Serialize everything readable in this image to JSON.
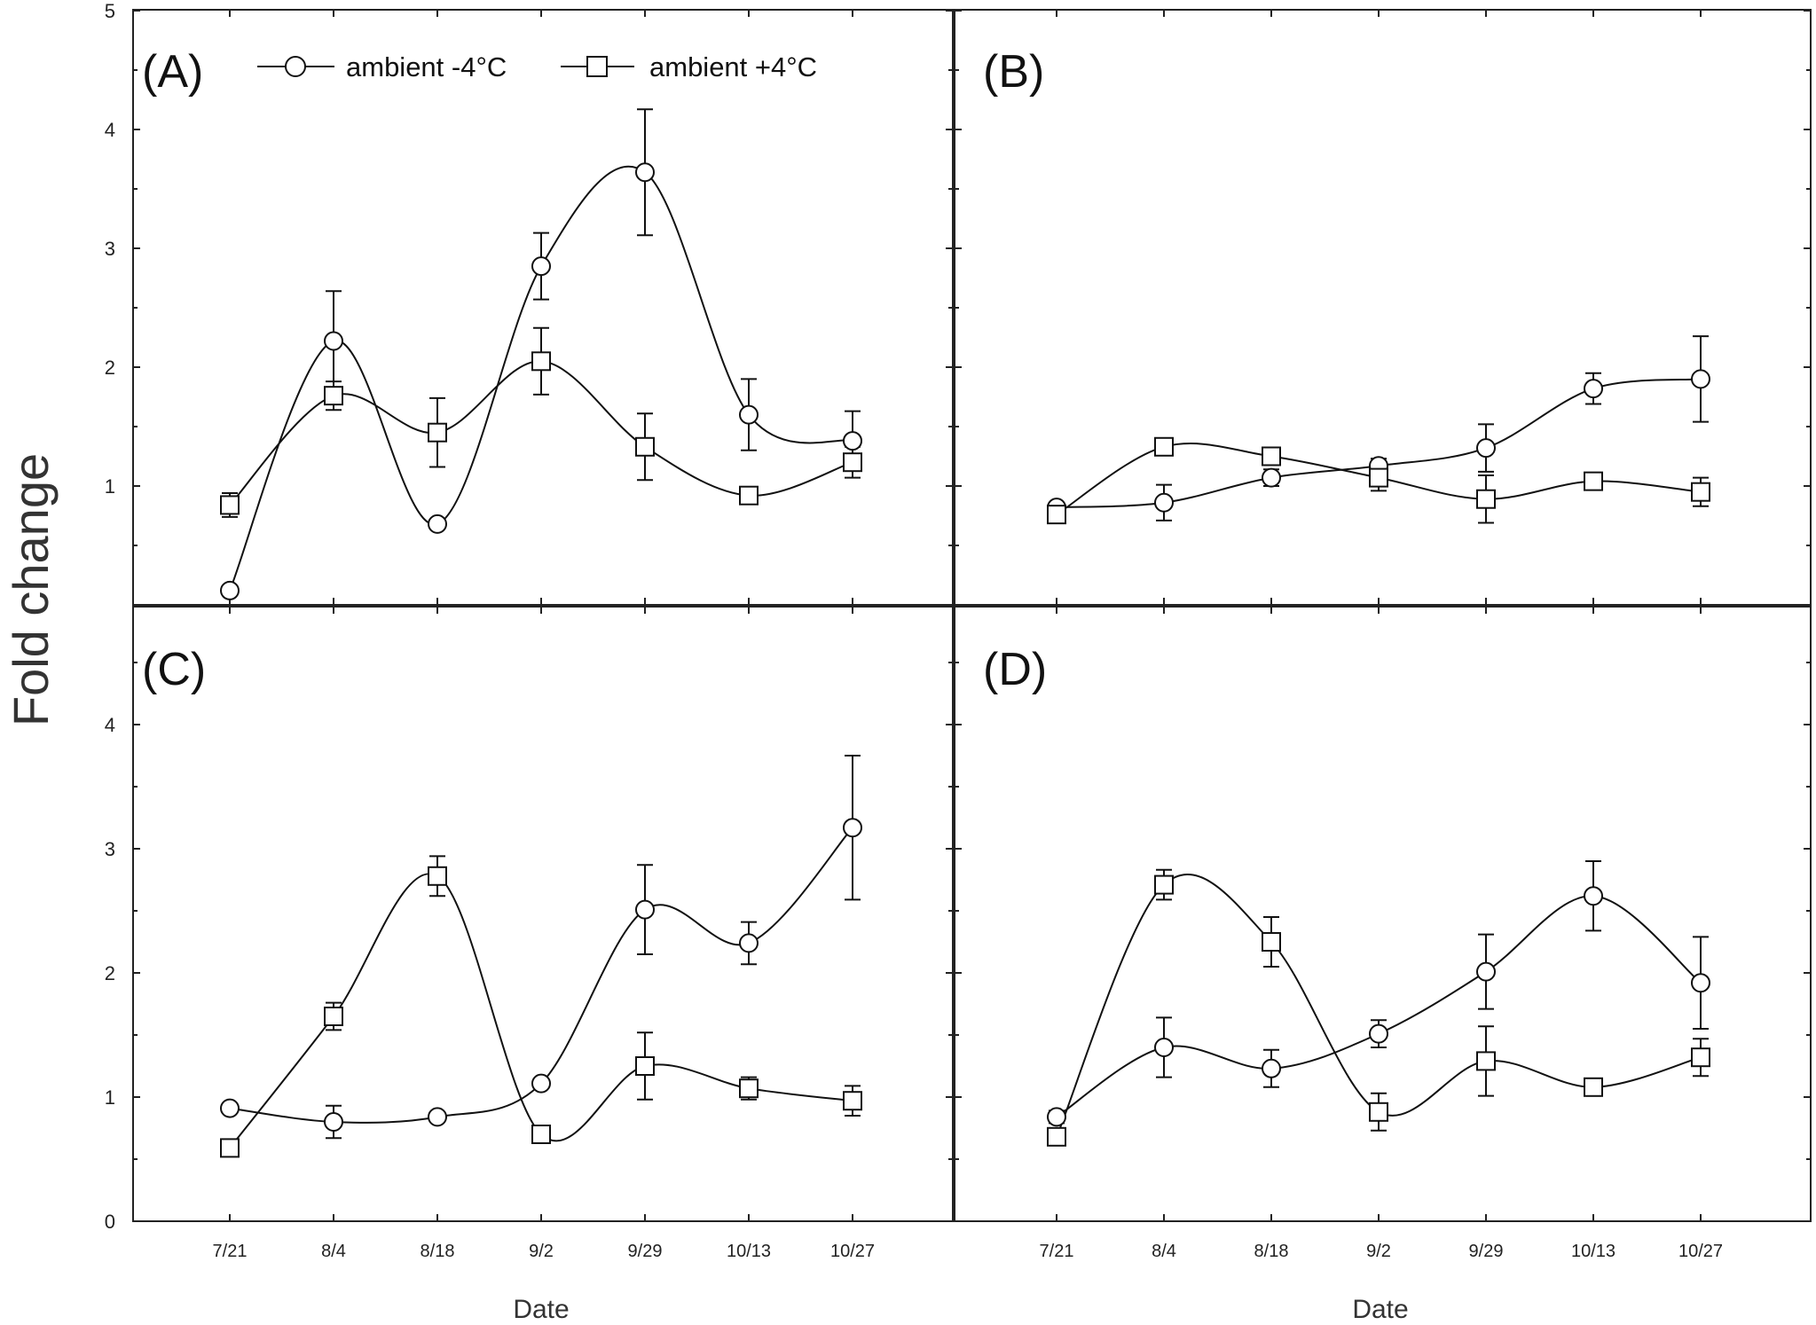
{
  "chart_data": [
    {
      "type": "line",
      "panel": "(A)",
      "categories": [
        "7/21",
        "8/4",
        "8/18",
        "9/2",
        "9/29",
        "10/13",
        "10/27"
      ],
      "ylim": [
        0,
        5
      ],
      "yticks": [
        "1",
        "2",
        "3",
        "4",
        "5"
      ],
      "series": [
        {
          "name": "ambient -4°C",
          "marker": "circle",
          "values": [
            0.12,
            2.22,
            0.68,
            2.85,
            3.64,
            1.6,
            1.38
          ],
          "errors": [
            0.0,
            0.42,
            0.0,
            0.28,
            0.53,
            0.3,
            0.25
          ]
        },
        {
          "name": "ambient +4°C",
          "marker": "square",
          "values": [
            0.84,
            1.76,
            1.45,
            2.05,
            1.33,
            0.92,
            1.2
          ],
          "errors": [
            0.1,
            0.12,
            0.29,
            0.28,
            0.28,
            0.0,
            0.13
          ]
        }
      ]
    },
    {
      "type": "line",
      "panel": "(B)",
      "categories": [
        "7/21",
        "8/4",
        "8/18",
        "9/2",
        "9/29",
        "10/13",
        "10/27"
      ],
      "ylim": [
        0,
        5
      ],
      "yticks": [],
      "series": [
        {
          "name": "ambient -4°C",
          "marker": "circle",
          "values": [
            0.82,
            0.86,
            1.07,
            1.17,
            1.32,
            1.82,
            1.9
          ],
          "errors": [
            0.0,
            0.15,
            0.07,
            0.06,
            0.2,
            0.13,
            0.36
          ]
        },
        {
          "name": "ambient +4°C",
          "marker": "square",
          "values": [
            0.76,
            1.33,
            1.25,
            1.07,
            0.89,
            1.04,
            0.95
          ],
          "errors": [
            0.0,
            0.0,
            0.0,
            0.11,
            0.2,
            0.05,
            0.12
          ]
        }
      ]
    },
    {
      "type": "line",
      "panel": "(C)",
      "categories": [
        "7/21",
        "8/4",
        "8/18",
        "9/2",
        "9/29",
        "10/13",
        "10/27"
      ],
      "ylim": [
        0,
        5
      ],
      "yticks": [
        "0",
        "1",
        "2",
        "3",
        "4"
      ],
      "series": [
        {
          "name": "ambient -4°C",
          "marker": "circle",
          "values": [
            0.91,
            0.8,
            0.84,
            1.11,
            2.51,
            2.24,
            3.17
          ],
          "errors": [
            0.0,
            0.13,
            0.0,
            0.0,
            0.36,
            0.17,
            0.58
          ]
        },
        {
          "name": "ambient +4°C",
          "marker": "square",
          "values": [
            0.59,
            1.65,
            2.78,
            0.7,
            1.25,
            1.07,
            0.97
          ],
          "errors": [
            0.0,
            0.11,
            0.16,
            0.0,
            0.27,
            0.09,
            0.12
          ]
        }
      ]
    },
    {
      "type": "line",
      "panel": "(D)",
      "categories": [
        "7/21",
        "8/4",
        "8/18",
        "9/2",
        "9/29",
        "10/13",
        "10/27"
      ],
      "ylim": [
        0,
        5
      ],
      "yticks": [],
      "series": [
        {
          "name": "ambient -4°C",
          "marker": "circle",
          "values": [
            0.84,
            1.4,
            1.23,
            1.51,
            2.01,
            2.62,
            1.92
          ],
          "errors": [
            0.05,
            0.24,
            0.15,
            0.11,
            0.3,
            0.28,
            0.37
          ]
        },
        {
          "name": "ambient +4°C",
          "marker": "square",
          "values": [
            0.68,
            2.71,
            2.25,
            0.88,
            1.29,
            1.08,
            1.32
          ],
          "errors": [
            0.0,
            0.12,
            0.2,
            0.15,
            0.28,
            0.05,
            0.15
          ]
        }
      ]
    }
  ],
  "legend": {
    "series_a": "ambient -4°C",
    "series_b": "ambient +4°C"
  },
  "xlabel": "Date",
  "ylabel": "Fold change"
}
